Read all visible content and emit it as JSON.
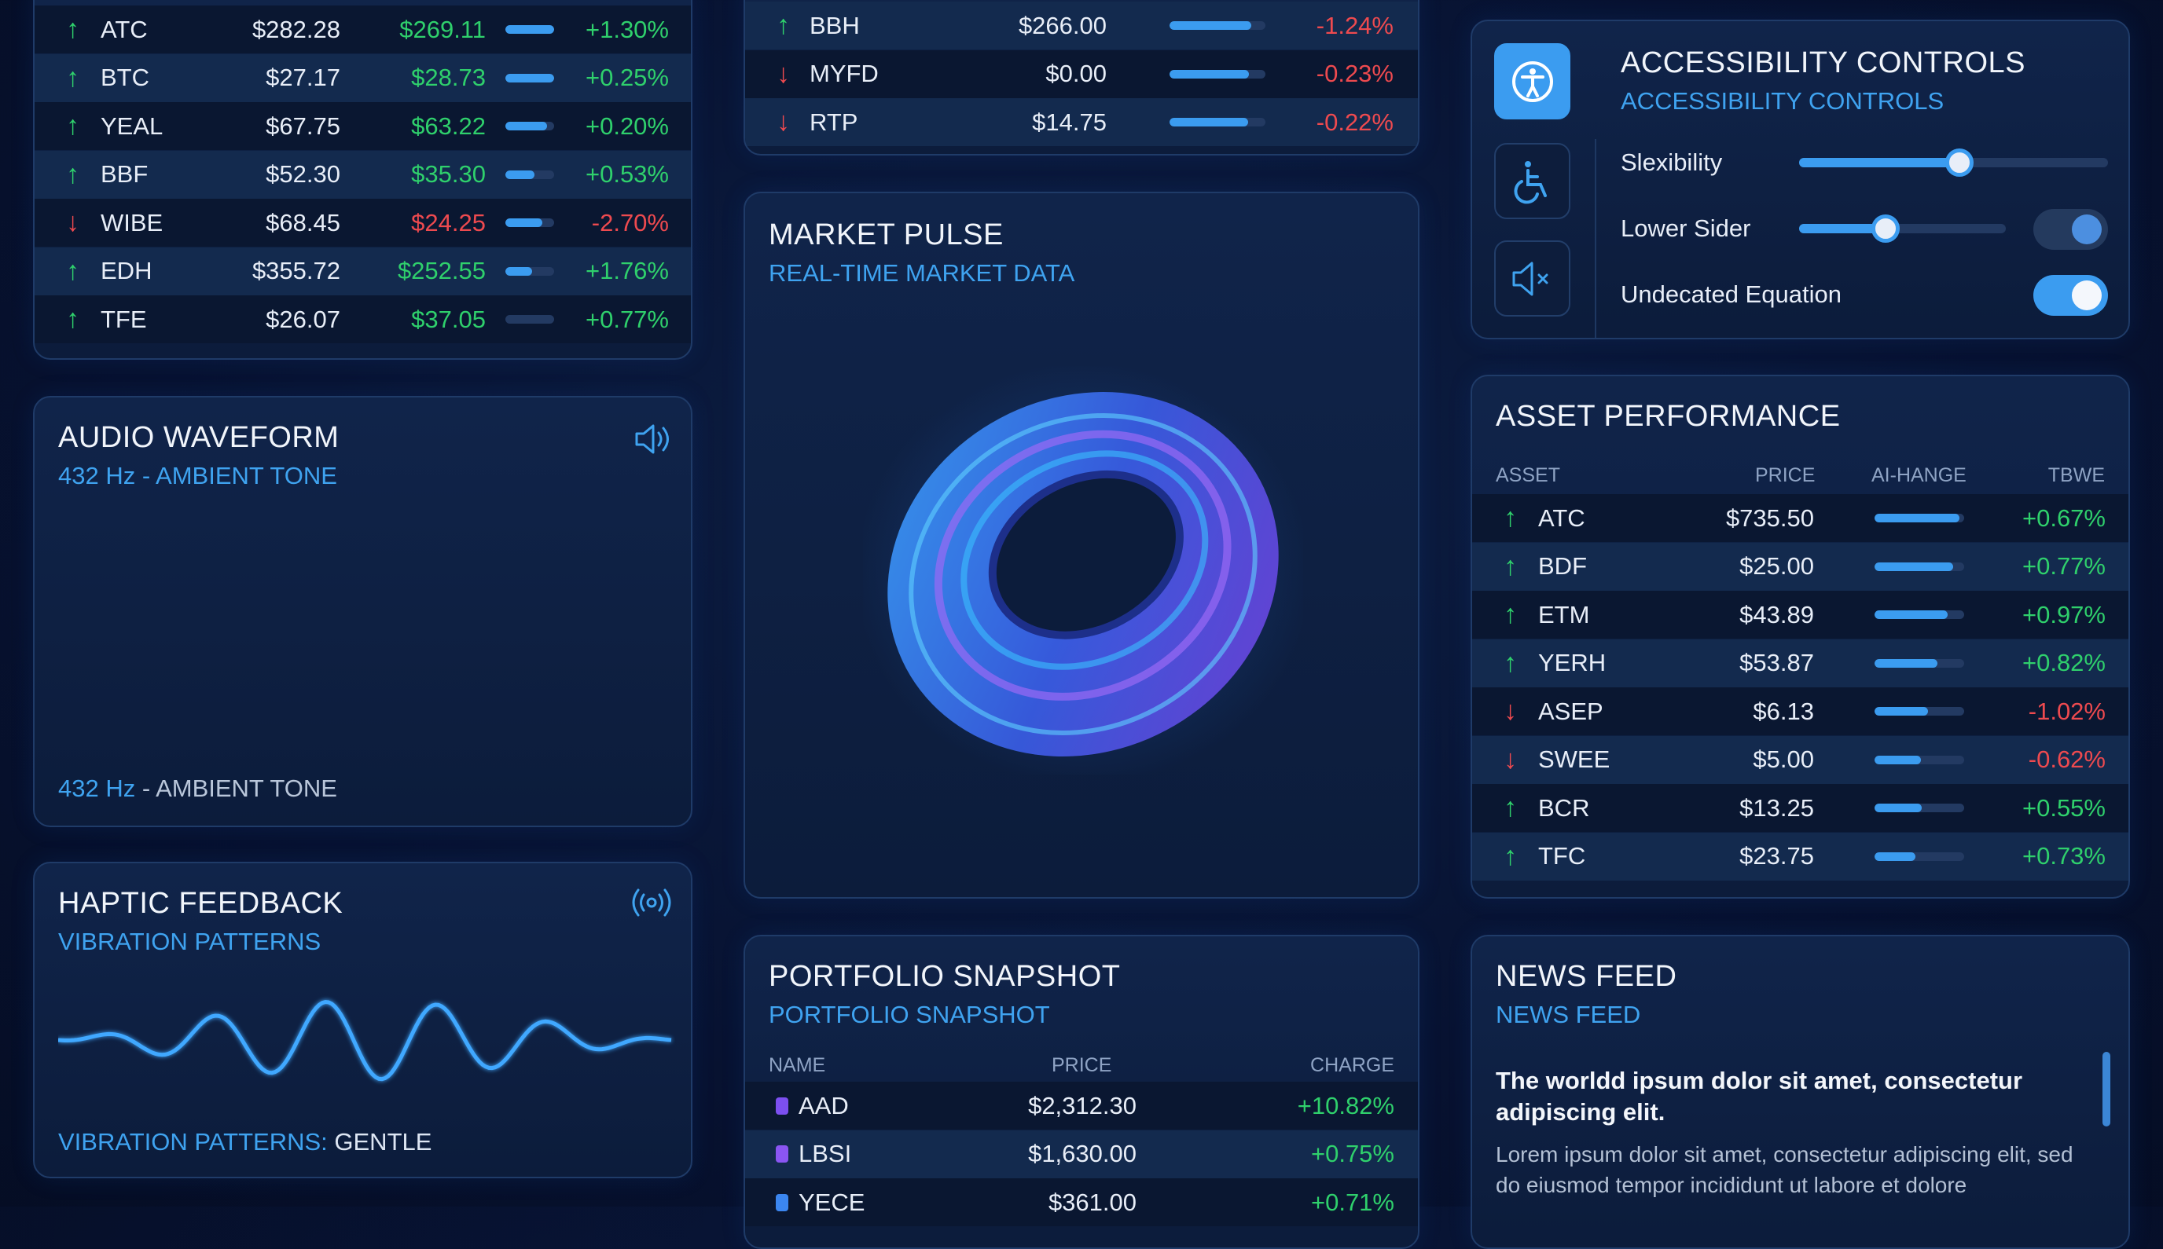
{
  "watchlist": {
    "rows": [
      {
        "dir": "up",
        "symbol": "ATC",
        "price": "$282.28",
        "value": "$269.11",
        "bar": 1.0,
        "change": "+1.30%"
      },
      {
        "dir": "up",
        "symbol": "BTC",
        "price": "$27.17",
        "value": "$28.73",
        "bar": 1.0,
        "change": "+0.25%"
      },
      {
        "dir": "up",
        "symbol": "YEAL",
        "price": "$67.75",
        "value": "$63.22",
        "bar": 0.85,
        "change": "+0.20%"
      },
      {
        "dir": "up",
        "symbol": "BBF",
        "price": "$52.30",
        "value": "$35.30",
        "bar": 0.6,
        "change": "+0.53%"
      },
      {
        "dir": "down",
        "symbol": "WIBE",
        "price": "$68.45",
        "value": "$24.25",
        "bar": 0.75,
        "change": "-2.70%"
      },
      {
        "dir": "up",
        "symbol": "EDH",
        "price": "$355.72",
        "value": "$252.55",
        "bar": 0.55,
        "change": "+1.76%"
      },
      {
        "dir": "up",
        "symbol": "TFE",
        "price": "$26.07",
        "value": "$37.05",
        "bar": 0.0,
        "change": "+0.77%"
      }
    ]
  },
  "ticker": {
    "rows": [
      {
        "dir": "up",
        "symbol": "BBH",
        "price": "$266.00",
        "bar": 0.85,
        "change": "-1.24%",
        "change_dir": "down"
      },
      {
        "dir": "down",
        "symbol": "MYFD",
        "price": "$0.00",
        "bar": 0.83,
        "change": "-0.23%",
        "change_dir": "down"
      },
      {
        "dir": "down",
        "symbol": "RTP",
        "price": "$14.75",
        "bar": 0.82,
        "change": "-0.22%",
        "change_dir": "down"
      }
    ]
  },
  "audio": {
    "title": "AUDIO WAVEFORM",
    "subtitle": "432 Hz - AMBIENT TONE",
    "footer_freq": "432 Hz",
    "footer_sep": " - ",
    "footer_label": "AMBIENT TONE"
  },
  "haptic": {
    "title": "HAPTIC FEEDBACK",
    "subtitle": "VIBRATION PATTERNS",
    "footer_label": "VIBRATION PATTERNS:",
    "footer_value": "GENTLE"
  },
  "market_pulse": {
    "title": "MARKET PULSE",
    "subtitle": "REAL-TIME MARKET DATA"
  },
  "portfolio": {
    "title": "PORTFOLIO SNAPSHOT",
    "subtitle": "PORTFOLIO SNAPSHOT",
    "headers": {
      "name": "NAME",
      "price": "PRICE",
      "change": "CHARGE"
    },
    "rows": [
      {
        "name": "AAD",
        "price": "$2,312.30",
        "change": "+10.82%",
        "color": "#7c4ff0"
      },
      {
        "name": "LBSI",
        "price": "$1,630.00",
        "change": "+0.75%",
        "color": "#8a55f2"
      },
      {
        "name": "YECE",
        "price": "$361.00",
        "change": "+0.71%",
        "color": "#3b86f0"
      }
    ]
  },
  "accessibility": {
    "title": "ACCESSIBILITY CONTROLS",
    "subtitle": "ACCESSIBILITY CONTROLS",
    "controls": {
      "slexibility": {
        "label": "Slexibility",
        "value": 0.52
      },
      "lower_sider": {
        "label": "Lower Sider",
        "value": 0.42,
        "toggle_on": true
      },
      "undecated": {
        "label": "Undecated Equation",
        "toggle_on": true
      }
    }
  },
  "asset_performance": {
    "title": "ASSET PERFORMANCE",
    "headers": {
      "asset": "ASSET",
      "price": "PRICE",
      "change": "AI-HANGE",
      "time": "TBWE"
    },
    "rows": [
      {
        "dir": "up",
        "symbol": "ATC",
        "price": "$735.50",
        "bar": 0.95,
        "change": "+0.67%"
      },
      {
        "dir": "up",
        "symbol": "BDF",
        "price": "$25.00",
        "bar": 0.88,
        "change": "+0.77%"
      },
      {
        "dir": "up",
        "symbol": "ETM",
        "price": "$43.89",
        "bar": 0.82,
        "change": "+0.97%"
      },
      {
        "dir": "up",
        "symbol": "YERH",
        "price": "$53.87",
        "bar": 0.7,
        "change": "+0.82%"
      },
      {
        "dir": "down",
        "symbol": "ASEP",
        "price": "$6.13",
        "bar": 0.6,
        "change": "-1.02%"
      },
      {
        "dir": "down",
        "symbol": "SWEE",
        "price": "$5.00",
        "bar": 0.52,
        "change": "-0.62%"
      },
      {
        "dir": "up",
        "symbol": "BCR",
        "price": "$13.25",
        "bar": 0.53,
        "change": "+0.55%"
      },
      {
        "dir": "up",
        "symbol": "TFC",
        "price": "$23.75",
        "bar": 0.46,
        "change": "+0.73%"
      }
    ]
  },
  "news": {
    "title": "NEWS FEED",
    "subtitle": "NEWS FEED",
    "headline": "The worldd ipsum dolor sit amet, consectetur adipiscing elit.",
    "body": "Lorem ipsum dolor sit amet, consectetur adipiscing elit, sed do eiusmod tempor incididunt ut labore et dolore"
  },
  "colors": {
    "accent": "#3b9cf0",
    "up": "#2fd06c",
    "down": "#ee4a4f",
    "background": "#071231"
  }
}
